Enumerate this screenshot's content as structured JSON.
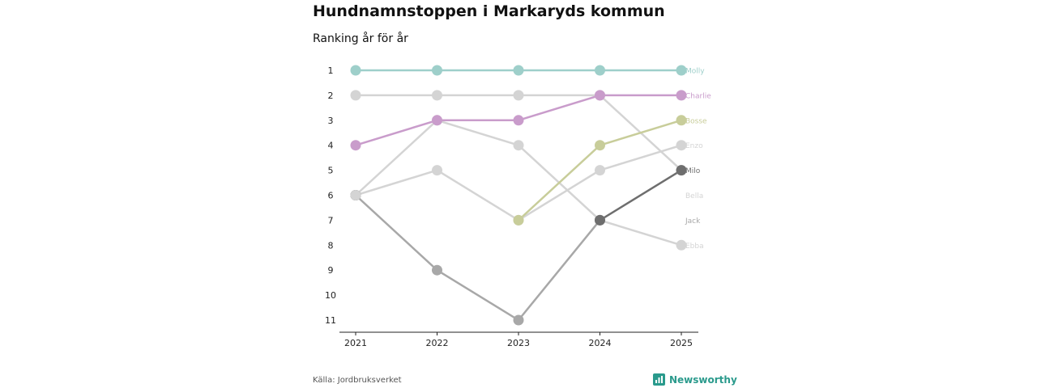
{
  "title": "Hundnamnstoppen i Markaryds kommun",
  "subtitle": "Ranking år för år",
  "source": "Källa: Jordbruksverket",
  "brand": {
    "name": "Newsworthy",
    "icon": "newsworthy-logo-icon",
    "color": "#2a9a8c"
  },
  "chart_data": {
    "type": "line",
    "x": [
      "2021",
      "2022",
      "2023",
      "2024",
      "2025"
    ],
    "y_ticks": [
      1,
      2,
      3,
      4,
      5,
      6,
      7,
      8,
      9,
      10,
      11
    ],
    "ylim": [
      1,
      11
    ],
    "y_inverted": true,
    "grid": false,
    "series": [
      {
        "name": "Molly",
        "color": "#9ecfca",
        "values": [
          1,
          1,
          1,
          1,
          1
        ]
      },
      {
        "name": "Charlie",
        "color": "#c99ccb",
        "values": [
          4,
          3,
          3,
          2,
          2
        ]
      },
      {
        "name": "Bosse",
        "color": "#c8cd9a",
        "values": [
          null,
          null,
          7,
          4,
          3
        ]
      },
      {
        "name": "Enzo",
        "color": "#d4d4d4",
        "values": [
          6,
          5,
          7,
          5,
          4
        ]
      },
      {
        "name": "Milo",
        "color": "#6e6e6e",
        "values": [
          6,
          null,
          null,
          7,
          5
        ]
      },
      {
        "name": "Bella",
        "color": "#d4d4d4",
        "values": [
          2,
          2,
          2,
          2,
          5
        ]
      },
      {
        "name": "Jack",
        "color": "#a8a8a8",
        "values": [
          6,
          9,
          11,
          7,
          null
        ]
      },
      {
        "name": "Ebba",
        "color": "#d4d4d4",
        "values": [
          6,
          3,
          4,
          7,
          8
        ]
      }
    ],
    "labels": [
      {
        "name": "Molly",
        "rank": 1,
        "color": "#9ecfca"
      },
      {
        "name": "Charlie",
        "rank": 2,
        "color": "#c99ccb"
      },
      {
        "name": "Bosse",
        "rank": 3,
        "color": "#c8cd9a"
      },
      {
        "name": "Enzo",
        "rank": 4,
        "color": "#d4d4d4"
      },
      {
        "name": "Milo",
        "rank": 5,
        "color": "#6e6e6e"
      },
      {
        "name": "Bella",
        "rank": 6,
        "color": "#d4d4d4"
      },
      {
        "name": "Jack",
        "rank": 7,
        "color": "#a8a8a8"
      },
      {
        "name": "Ebba",
        "rank": 8,
        "color": "#d4d4d4"
      }
    ]
  }
}
